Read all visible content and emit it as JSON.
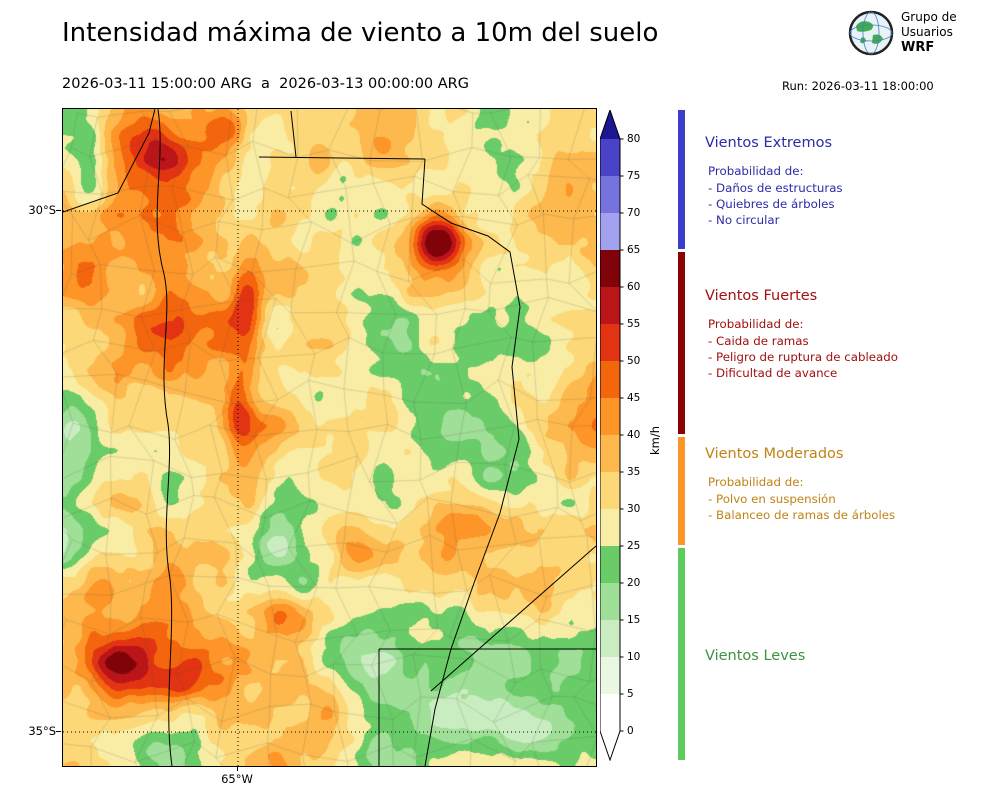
{
  "header": {
    "title": "Intensidad máxima de viento a 10m del suelo",
    "period_text": "2026-03-11 15:00:00 ARG  a  2026-03-13 00:00:00 ARG",
    "run_text": "Run: 2026-03-11 18:00:00",
    "logo_lines": [
      "Grupo de",
      "Usuarios",
      "WRF"
    ]
  },
  "map_axes": {
    "lat_ticks": [
      {
        "label": "30°S"
      },
      {
        "label": "35°S"
      }
    ],
    "lon_ticks": [
      {
        "label": "65°W"
      }
    ]
  },
  "colorbar": {
    "unit": "km/h",
    "ticks": [
      0,
      5,
      10,
      15,
      20,
      25,
      30,
      35,
      40,
      45,
      50,
      55,
      60,
      65,
      70,
      75,
      80
    ],
    "colors": [
      "#ffffff",
      "#e9f7e3",
      "#c9ecc0",
      "#9fdf97",
      "#69cc69",
      "#f9eca4",
      "#fdd878",
      "#fdb94e",
      "#fd9528",
      "#f4660e",
      "#e23312",
      "#bb1419",
      "#7f0308",
      "#a2a2f0",
      "#7673de",
      "#4a43c7",
      "#2721a9"
    ],
    "over_color": "#1c1690",
    "under_color": "#ffffff"
  },
  "legend": {
    "sections": [
      {
        "title": "Vientos Extremos",
        "text_color": "#2b2ba6",
        "strip_color": "#3d3dcc",
        "range_kmh": [
          65,
          85
        ],
        "intro": "Probabilidad de:",
        "items": [
          "- Daños de estructuras",
          "- Quiebres de árboles",
          "- No circular"
        ]
      },
      {
        "title": "Vientos Fuertes",
        "text_color": "#a01010",
        "strip_color": "#8b0000",
        "range_kmh": [
          40,
          65
        ],
        "intro": "Probabilidad de:",
        "items": [
          "- Caida de ramas",
          "- Peligro de ruptura de cableado",
          "- Dificultad de avance"
        ]
      },
      {
        "title": "Vientos Moderados",
        "text_color": "#bf8316",
        "strip_color": "#fd9528",
        "range_kmh": [
          25,
          40
        ],
        "intro": "Probabilidad de:",
        "items": [
          "- Polvo en suspensión",
          "- Balanceo de ramas de árboles"
        ]
      },
      {
        "title": "Vientos Leves",
        "text_color": "#3d9140",
        "strip_color": "#5ecb5e",
        "range_kmh": [
          0,
          25
        ],
        "intro": "",
        "items": []
      }
    ]
  },
  "chart_data": {
    "type": "heatmap",
    "title": "Intensidad máxima de viento a 10m del suelo",
    "period": "2026-03-11 15:00:00 ARG a 2026-03-13 00:00:00 ARG",
    "run": "2026-03-11 18:00:00",
    "units": "km/h",
    "value_range_shown": [
      0,
      85
    ],
    "colorbar_step": 5,
    "y_axis_ticks": [
      "30°S",
      "35°S"
    ],
    "x_axis_ticks": [
      "65°W"
    ],
    "dominant_values_kmh": [
      25,
      45
    ],
    "max_area": {
      "description": "Máximo local 60-65 km/h en el noreste del dominio",
      "approx_value_kmh": 63
    },
    "categories": [
      {
        "name": "Vientos Leves",
        "range_kmh": [
          0,
          25
        ]
      },
      {
        "name": "Vientos Moderados",
        "range_kmh": [
          25,
          40
        ]
      },
      {
        "name": "Vientos Fuertes",
        "range_kmh": [
          40,
          65
        ]
      },
      {
        "name": "Vientos Extremos",
        "range_kmh": [
          65,
          85
        ]
      }
    ],
    "field_model": {
      "base": 33,
      "octave_amps": [
        13,
        7,
        4,
        2
      ],
      "bumps": [
        {
          "x": 0.7,
          "y": 0.205,
          "sx": 0.05,
          "sy": 0.042,
          "a": 30
        },
        {
          "x": 0.67,
          "y": 0.23,
          "sx": 0.11,
          "sy": 0.085,
          "a": 9
        },
        {
          "x": 0.345,
          "y": 0.3,
          "sx": 0.03,
          "sy": 0.085,
          "a": 15
        },
        {
          "x": 0.33,
          "y": 0.46,
          "sx": 0.026,
          "sy": 0.075,
          "a": 13
        },
        {
          "x": 0.17,
          "y": 0.055,
          "sx": 0.055,
          "sy": 0.045,
          "a": 16
        },
        {
          "x": 0.3,
          "y": 0.035,
          "sx": 0.04,
          "sy": 0.035,
          "a": 14
        },
        {
          "x": 0.48,
          "y": 0.09,
          "sx": 0.035,
          "sy": 0.04,
          "a": 12
        },
        {
          "x": 0.06,
          "y": 0.24,
          "sx": 0.05,
          "sy": 0.06,
          "a": 11
        },
        {
          "x": 0.07,
          "y": 0.72,
          "sx": 0.05,
          "sy": 0.05,
          "a": 17
        },
        {
          "x": 0.11,
          "y": 0.85,
          "sx": 0.06,
          "sy": 0.04,
          "a": 15
        },
        {
          "x": 0.23,
          "y": 0.875,
          "sx": 0.05,
          "sy": 0.033,
          "a": 13
        },
        {
          "x": 0.43,
          "y": 0.77,
          "sx": 0.075,
          "sy": 0.03,
          "a": 11
        },
        {
          "x": 0.56,
          "y": 0.675,
          "sx": 0.065,
          "sy": 0.033,
          "a": 10
        },
        {
          "x": 0.76,
          "y": 0.615,
          "sx": 0.055,
          "sy": 0.03,
          "a": 9
        },
        {
          "x": 0.86,
          "y": 0.44,
          "sx": 0.05,
          "sy": 0.04,
          "a": 8
        },
        {
          "x": 0.43,
          "y": 0.555,
          "sx": 0.055,
          "sy": 0.065,
          "a": -15
        },
        {
          "x": 0.46,
          "y": 0.445,
          "sx": 0.045,
          "sy": 0.05,
          "a": -9
        },
        {
          "x": 0.05,
          "y": 0.1,
          "sx": 0.03,
          "sy": 0.07,
          "a": -13
        },
        {
          "x": 0.86,
          "y": 0.07,
          "sx": 0.05,
          "sy": 0.05,
          "a": -11
        },
        {
          "x": 0.87,
          "y": 0.94,
          "sx": 0.1,
          "sy": 0.055,
          "a": -16
        },
        {
          "x": 0.72,
          "y": 0.92,
          "sx": 0.07,
          "sy": 0.05,
          "a": -10
        },
        {
          "x": 0.02,
          "y": 0.5,
          "sx": 0.035,
          "sy": 0.06,
          "a": -9
        }
      ]
    },
    "boundaries": [
      "M95,0 C103,55 85,105 101,165 C110,205 94,255 105,315 C111,360 97,415 107,470 C113,525 100,595 109,657",
      "M0,103 L55,84 L86,24 L92,0",
      "M196,48 L362,50",
      "M228,2 L233,48",
      "M362,50 L359,95 L388,114 L425,127 L447,143 L457,198 L449,258 L456,330 L437,404 L411,474 L388,540 L372,600 L362,657",
      "M533,437 L368,582",
      "M316,540 L316,657",
      "M316,540 L533,540"
    ]
  }
}
